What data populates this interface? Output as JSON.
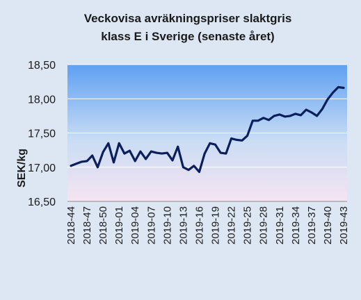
{
  "chart_data": {
    "type": "line",
    "title": [
      "Veckovisa avräkningspriser slaktgris",
      "klass E i Sverige (senaste året)"
    ],
    "ylabel": "SEK/kg",
    "xlabel": "",
    "ylim": [
      16.5,
      18.5
    ],
    "yticks": [
      "16,50",
      "17,00",
      "17,50",
      "18,00",
      "18,50"
    ],
    "yticks_values": [
      16.5,
      17.0,
      17.5,
      18.0,
      18.5
    ],
    "grid": true,
    "legend": "none",
    "line_color": "#0b1f5c",
    "x_tick_labels": [
      "2018-44",
      "2018-47",
      "2018-50",
      "2019-01",
      "2019-04",
      "2019-07",
      "2019-10",
      "2019-13",
      "2019-16",
      "2019-19",
      "2019-22",
      "2019-25",
      "2019-28",
      "2019-31",
      "2019-34",
      "2019-37",
      "2019-40",
      "2019-43"
    ],
    "x": [
      "2018-44",
      "2018-45",
      "2018-46",
      "2018-47",
      "2018-48",
      "2018-49",
      "2018-50",
      "2018-51",
      "2018-52",
      "2019-01",
      "2019-02",
      "2019-03",
      "2019-04",
      "2019-05",
      "2019-06",
      "2019-07",
      "2019-08",
      "2019-09",
      "2019-10",
      "2019-11",
      "2019-12",
      "2019-13",
      "2019-14",
      "2019-15",
      "2019-16",
      "2019-17",
      "2019-18",
      "2019-19",
      "2019-20",
      "2019-21",
      "2019-22",
      "2019-23",
      "2019-24",
      "2019-25",
      "2019-26",
      "2019-27",
      "2019-28",
      "2019-29",
      "2019-30",
      "2019-31",
      "2019-32",
      "2019-33",
      "2019-34",
      "2019-35",
      "2019-36",
      "2019-37",
      "2019-38",
      "2019-39",
      "2019-40",
      "2019-41",
      "2019-42",
      "2019-43"
    ],
    "values": [
      17.02,
      17.05,
      17.08,
      17.09,
      17.17,
      17.0,
      17.22,
      17.35,
      17.07,
      17.35,
      17.2,
      17.24,
      17.09,
      17.23,
      17.12,
      17.23,
      17.21,
      17.2,
      17.21,
      17.1,
      17.3,
      17.0,
      16.96,
      17.02,
      16.93,
      17.2,
      17.35,
      17.33,
      17.21,
      17.2,
      17.42,
      17.4,
      17.39,
      17.46,
      17.68,
      17.68,
      17.72,
      17.69,
      17.75,
      17.77,
      17.74,
      17.75,
      17.78,
      17.76,
      17.84,
      17.8,
      17.75,
      17.85,
      17.99,
      18.09,
      18.17,
      18.16
    ]
  }
}
